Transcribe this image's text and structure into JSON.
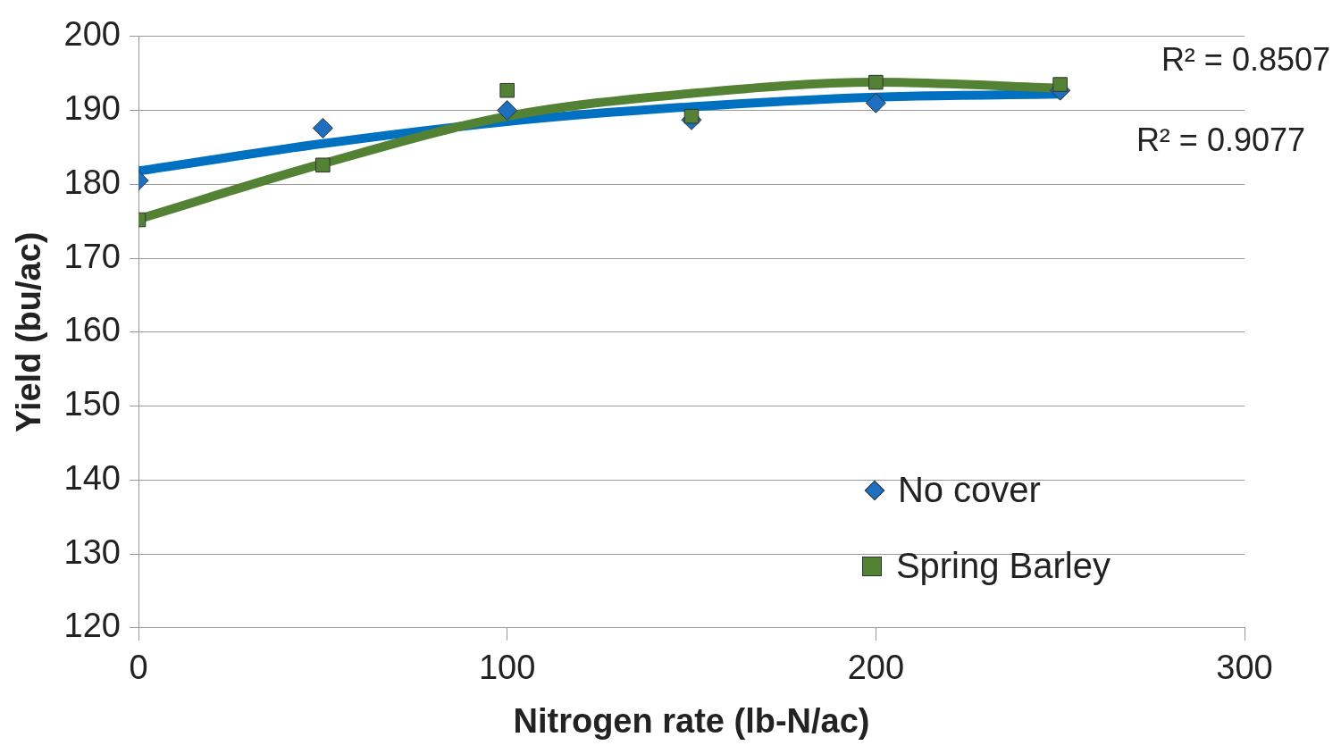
{
  "chart_data": {
    "type": "scatter",
    "xlabel": "Nitrogen rate (lb-N/ac)",
    "ylabel": "Yield (bu/ac)",
    "xlim": [
      0,
      300
    ],
    "xticks": [
      0,
      100,
      200,
      300
    ],
    "ylim": [
      120,
      200
    ],
    "yticks": [
      120,
      130,
      140,
      150,
      160,
      170,
      180,
      190,
      200
    ],
    "grid": "y",
    "legend": "bottom right",
    "series": [
      {
        "name": "No cover",
        "marker": "diamond",
        "color": "#1f6fc0",
        "x": [
          0,
          50,
          100,
          150,
          200,
          250
        ],
        "values": [
          180.5,
          187.6,
          190,
          188.7,
          191,
          192.7
        ]
      },
      {
        "name": "Spring Barley",
        "marker": "square",
        "color": "#548235",
        "x": [
          0,
          50,
          100,
          150,
          200,
          250
        ],
        "values": [
          175.2,
          182.6,
          192.7,
          189.2,
          193.8,
          193.5
        ]
      },
      {
        "type": "line",
        "marker": "none",
        "color": "#0070c0",
        "x": [
          0,
          50,
          100,
          150,
          200,
          250
        ],
        "values": [
          181.8,
          185.5,
          188.5,
          190.5,
          191.8,
          192.2
        ]
      },
      {
        "type": "line",
        "marker": "none",
        "color": "#548235",
        "x": [
          0,
          50,
          100,
          150,
          200,
          250
        ],
        "values": [
          175.3,
          182.8,
          189.2,
          192.3,
          193.8,
          193.0
        ]
      }
    ],
    "annotations": [
      "R² = 0.8507",
      "R² = 0.9077"
    ]
  }
}
